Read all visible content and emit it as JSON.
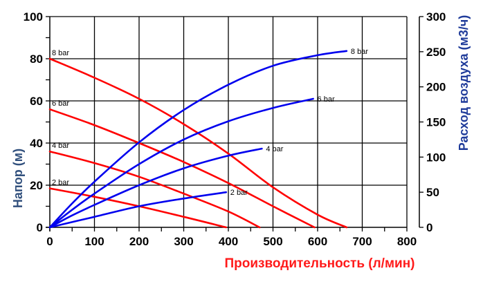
{
  "chart_data": {
    "type": "line",
    "title": "",
    "xlabel": "Производительность (л/мин)",
    "ylabel": "Напор (м)",
    "y2label": "Расход воздуха (м3/ч)",
    "xlim": [
      0,
      800
    ],
    "ylim": [
      0,
      100
    ],
    "y2lim": [
      0,
      300
    ],
    "x_ticks": [
      0,
      100,
      200,
      300,
      400,
      500,
      600,
      700,
      800
    ],
    "y_ticks": [
      0,
      20,
      40,
      60,
      80,
      100
    ],
    "y2_ticks": [
      0,
      50,
      100,
      150,
      200,
      250,
      300
    ],
    "grid": true,
    "legend": "inline labels",
    "colors": {
      "head": "#ff0000",
      "air": "#0000ee",
      "x_title": "#ff1a1a",
      "y_title": "#31507d",
      "y2_title": "#1f3b9a"
    },
    "series": [
      {
        "name": "8 bar",
        "kind": "head",
        "axis": "left",
        "label": "8 bar",
        "points": [
          [
            0,
            80
          ],
          [
            100,
            71
          ],
          [
            200,
            61
          ],
          [
            300,
            49
          ],
          [
            400,
            35
          ],
          [
            500,
            19
          ],
          [
            600,
            6
          ],
          [
            665,
            0
          ]
        ]
      },
      {
        "name": "6 bar",
        "kind": "head",
        "axis": "left",
        "label": "6 bar",
        "points": [
          [
            0,
            56
          ],
          [
            100,
            48.5
          ],
          [
            200,
            40
          ],
          [
            300,
            31
          ],
          [
            400,
            21
          ],
          [
            500,
            10
          ],
          [
            593,
            0
          ]
        ]
      },
      {
        "name": "4 bar",
        "kind": "head",
        "axis": "left",
        "label": "4 bar",
        "points": [
          [
            0,
            36
          ],
          [
            100,
            30.5
          ],
          [
            200,
            24
          ],
          [
            300,
            16
          ],
          [
            400,
            7.5
          ],
          [
            470,
            0
          ]
        ]
      },
      {
        "name": "2 bar",
        "kind": "head",
        "axis": "left",
        "label": "2 bar",
        "points": [
          [
            0,
            18.5
          ],
          [
            100,
            14.5
          ],
          [
            200,
            10
          ],
          [
            300,
            5
          ],
          [
            395,
            0
          ]
        ]
      },
      {
        "name": "8 bar",
        "kind": "air",
        "axis": "right",
        "label": "8 bar",
        "points": [
          [
            0,
            0
          ],
          [
            50,
            34
          ],
          [
            100,
            65
          ],
          [
            200,
            121
          ],
          [
            300,
            167
          ],
          [
            400,
            203
          ],
          [
            500,
            230
          ],
          [
            600,
            245
          ],
          [
            665,
            251
          ]
        ]
      },
      {
        "name": "6 bar",
        "kind": "air",
        "axis": "right",
        "label": "6 bar",
        "points": [
          [
            0,
            0
          ],
          [
            50,
            25
          ],
          [
            100,
            48
          ],
          [
            200,
            90
          ],
          [
            300,
            125
          ],
          [
            400,
            151
          ],
          [
            500,
            170
          ],
          [
            590,
            183
          ]
        ]
      },
      {
        "name": "4 bar",
        "kind": "air",
        "axis": "right",
        "label": "4 bar",
        "points": [
          [
            0,
            0
          ],
          [
            50,
            17
          ],
          [
            100,
            32
          ],
          [
            200,
            60
          ],
          [
            300,
            84
          ],
          [
            400,
            102
          ],
          [
            475,
            112
          ]
        ]
      },
      {
        "name": "2 bar",
        "kind": "air",
        "axis": "right",
        "label": "2 bar",
        "points": [
          [
            0,
            0
          ],
          [
            100,
            15
          ],
          [
            200,
            30
          ],
          [
            300,
            41
          ],
          [
            395,
            50
          ]
        ]
      }
    ]
  }
}
